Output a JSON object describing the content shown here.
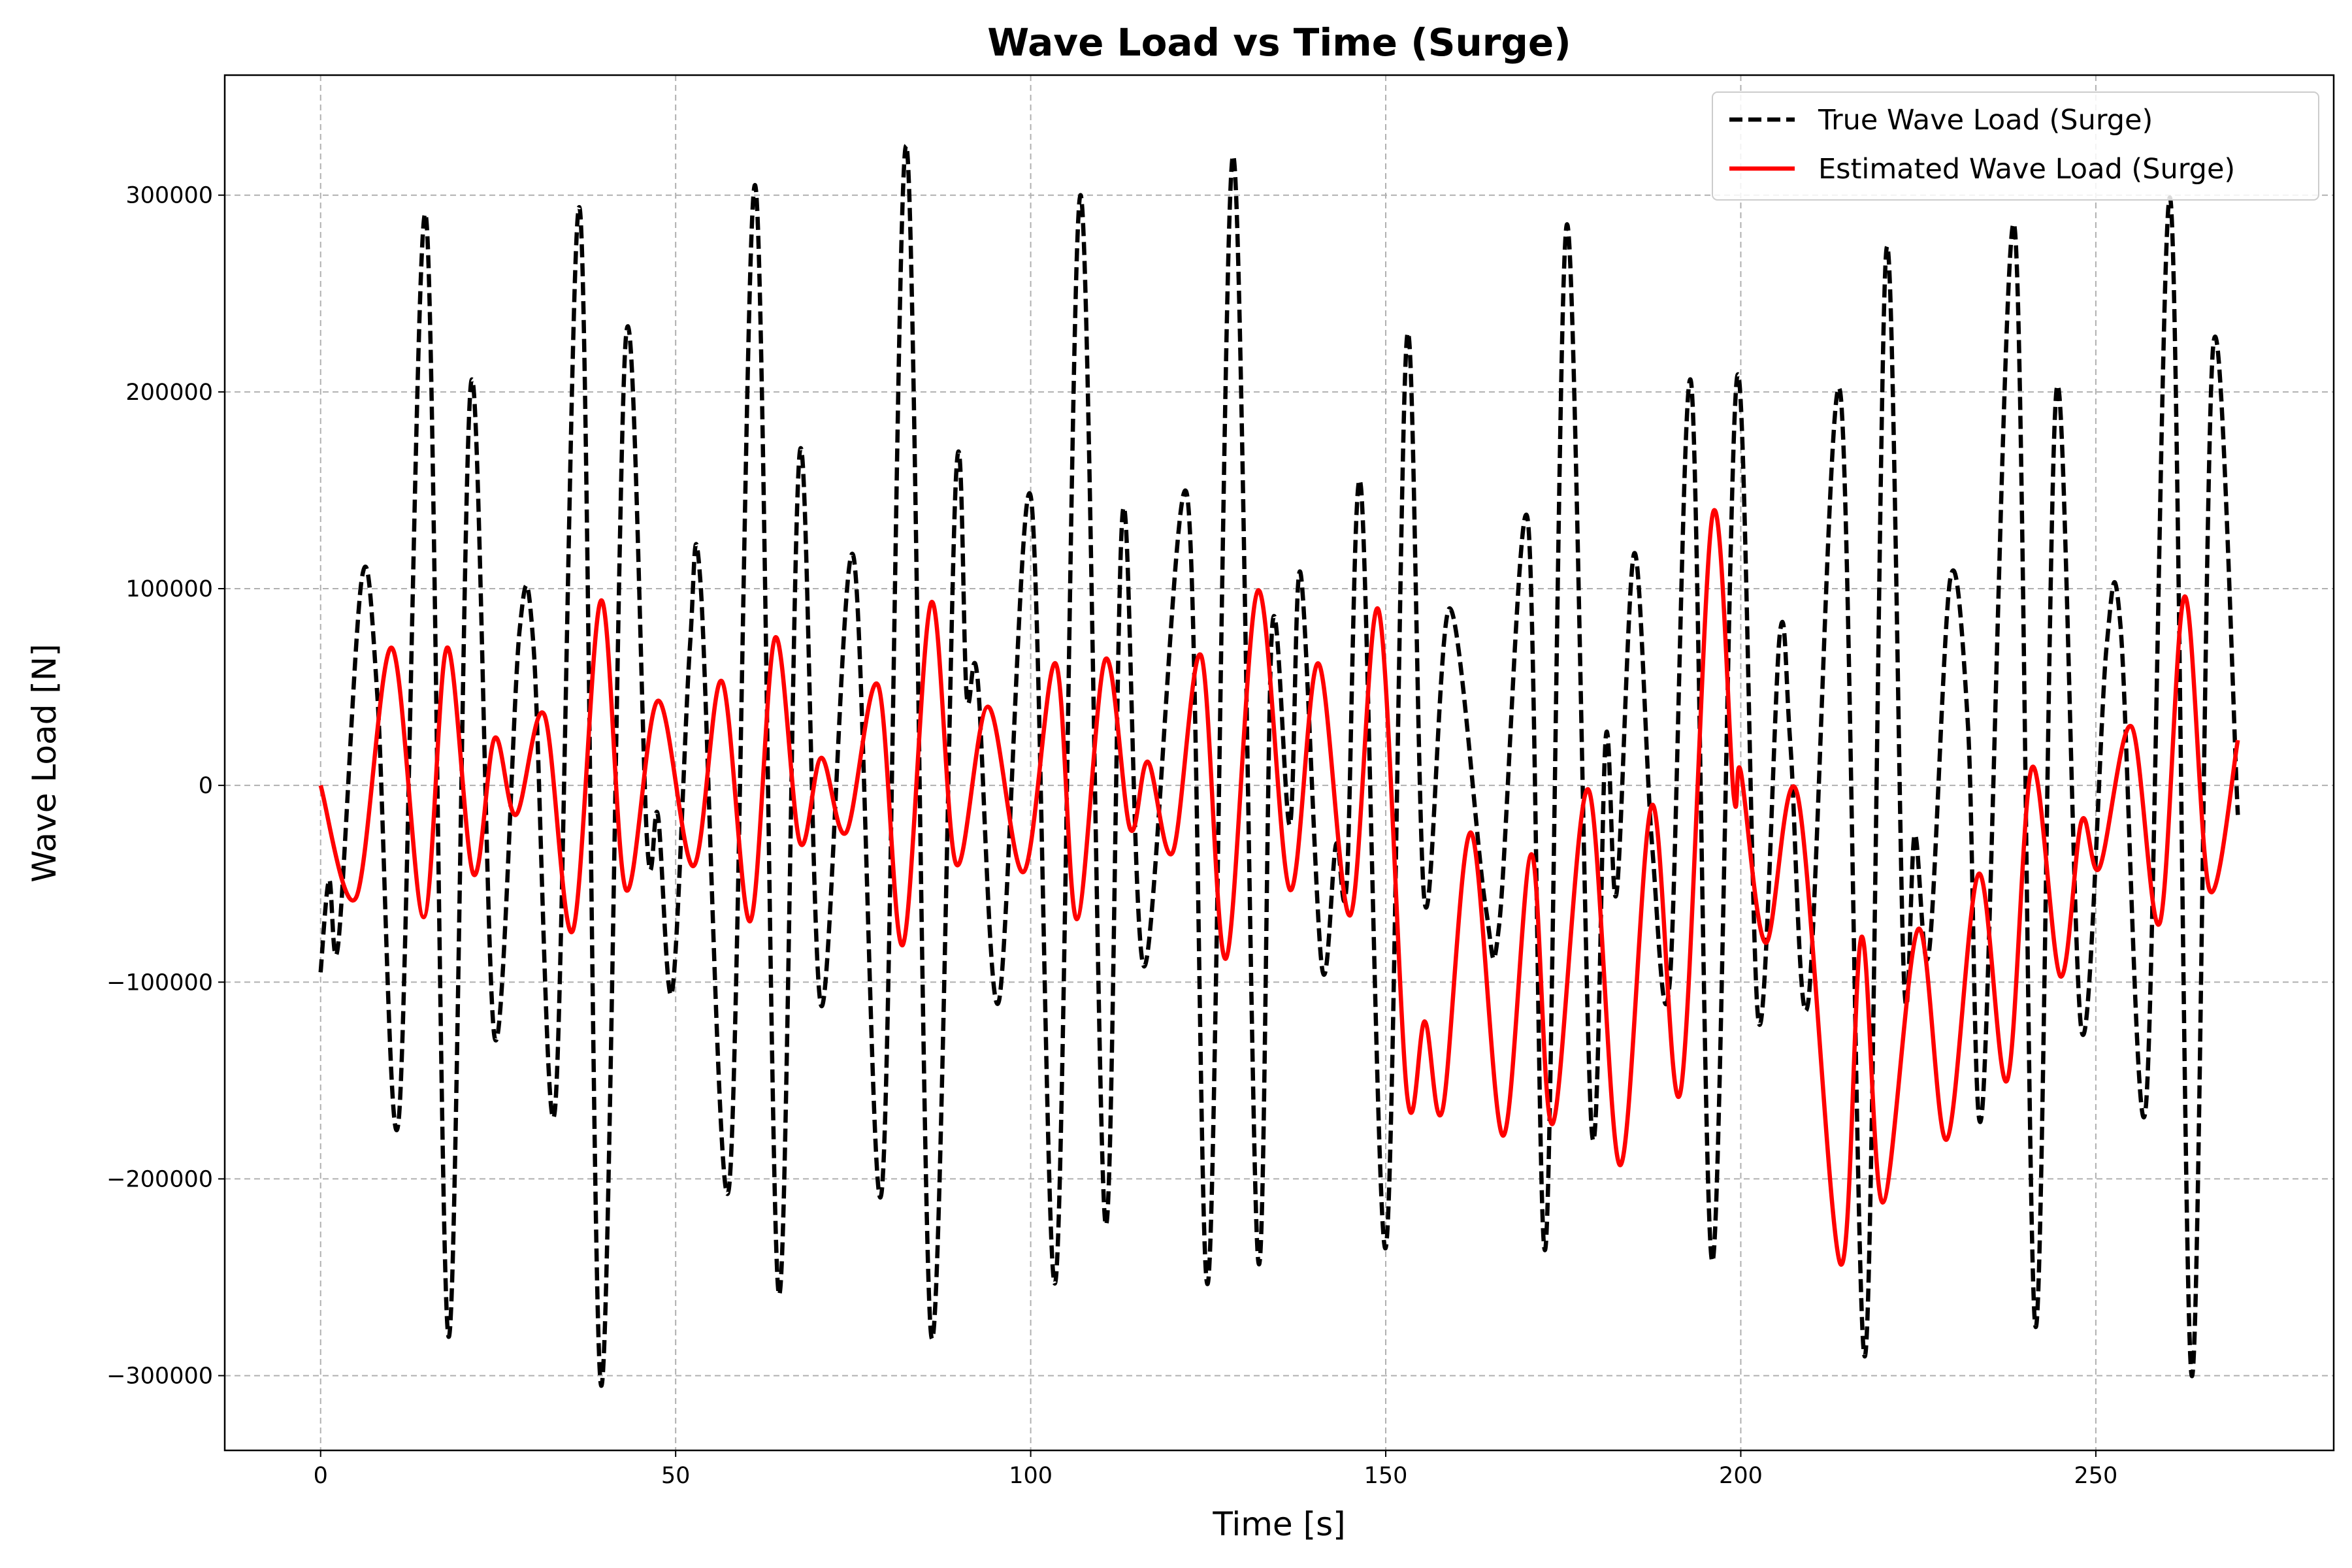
{
  "chart_data": {
    "type": "line",
    "title": "Wave Load vs Time (Surge)",
    "x_label": "Time [s]",
    "y_label": "Wave Load [N]",
    "xlim": [
      -13.5,
      283.5
    ],
    "ylim": [
      -338000,
      361000
    ],
    "xticks": [
      0,
      50,
      100,
      150,
      200,
      250
    ],
    "yticks": [
      {
        "value": -300000,
        "label": "−300000"
      },
      {
        "value": -200000,
        "label": "−200000"
      },
      {
        "value": -100000,
        "label": "−100000"
      },
      0,
      100000,
      200000,
      300000
    ],
    "grid": true,
    "legend": "upper right",
    "series": [
      {
        "name": "True Wave Load (Surge)",
        "color": "#000000",
        "style": "dashed",
        "x": [
          0,
          1.2,
          2.5,
          5.8,
          8,
          11,
          14.8,
          18,
          21.2,
          24.5,
          28,
          30,
          33,
          36.5,
          39.5,
          43,
          46,
          47.5,
          49.5,
          52,
          53.5,
          57.5,
          61.2,
          64.5,
          67.5,
          70.5,
          75,
          79,
          82.5,
          86,
          89.5,
          91,
          92.5,
          95.5,
          100,
          103.5,
          107,
          110.5,
          113,
          116,
          122,
          125,
          128.5,
          132,
          134,
          136.5,
          138,
          141,
          143,
          144.5,
          146.5,
          150,
          153,
          155.5,
          159,
          164,
          166,
          170,
          172.5,
          175.5,
          179,
          181,
          182.5,
          185,
          187.5,
          190,
          193,
          196,
          199.5,
          202.5,
          205.5,
          207,
          209.5,
          214,
          217.5,
          220.5,
          223,
          224.5,
          226.5,
          229.5,
          232,
          234,
          238.5,
          241.5,
          244.5,
          248,
          251.5,
          253.5,
          257,
          260.5,
          263.5,
          266.5,
          270
        ],
        "values": [
          -95000,
          -48000,
          -80000,
          105000,
          45000,
          -170000,
          290000,
          -280000,
          205000,
          -128000,
          78000,
          70000,
          -165000,
          293000,
          -305000,
          228000,
          -30000,
          -15000,
          -105000,
          70000,
          103000,
          -205000,
          305000,
          -258000,
          170000,
          -112000,
          117000,
          -207000,
          325000,
          -280000,
          158000,
          45000,
          55000,
          -110000,
          147000,
          -252000,
          300000,
          -222000,
          140000,
          -92000,
          148000,
          -252000,
          320000,
          -240000,
          80000,
          -20000,
          108000,
          -92000,
          -30000,
          -50000,
          152000,
          -235000,
          228000,
          -60000,
          90000,
          -60000,
          -70000,
          135000,
          -235000,
          285000,
          -175000,
          25000,
          -55000,
          118000,
          -30000,
          -100000,
          205000,
          -242000,
          208000,
          -120000,
          77000,
          20000,
          -110000,
          200000,
          -290000,
          272000,
          -100000,
          -25000,
          -85000,
          105000,
          30000,
          -165000,
          285000,
          -275000,
          202000,
          -125000,
          70000,
          80000,
          -165000,
          298000,
          -300000,
          222000,
          -15000
        ]
      },
      {
        "name": "Estimated Wave Load (Surge)",
        "color": "#ff0000",
        "style": "solid",
        "x": [
          0,
          5,
          10,
          14.5,
          17.8,
          21.5,
          24.5,
          27.5,
          31.5,
          35.5,
          39.5,
          43,
          47.5,
          52.5,
          56.5,
          60.5,
          64,
          67.5,
          70.5,
          74,
          78.5,
          82,
          86,
          89.5,
          94,
          99,
          103.5,
          106.5,
          110.5,
          114,
          116.5,
          120,
          124,
          127.5,
          132,
          136.5,
          140.5,
          145,
          149,
          153,
          155.5,
          158,
          162,
          166.5,
          170.5,
          173.5,
          178.5,
          183,
          187.5,
          191.5,
          196,
          199,
          200,
          203.5,
          208,
          214,
          217,
          220,
          225,
          229,
          233.5,
          237.5,
          241,
          245,
          248,
          250.5,
          255,
          259,
          262.5,
          266,
          270
        ],
        "values": [
          0,
          -57000,
          70000,
          -67000,
          70000,
          -45000,
          24000,
          -15000,
          36000,
          -74000,
          94000,
          -53000,
          43000,
          -41000,
          53000,
          -69000,
          75000,
          -29000,
          14000,
          -24000,
          51000,
          -81000,
          93000,
          -40000,
          40000,
          -44000,
          62000,
          -68000,
          64000,
          -22000,
          12000,
          -34000,
          66000,
          -88000,
          99000,
          -53000,
          62000,
          -66000,
          89000,
          -157000,
          -120000,
          -165000,
          -24000,
          -178000,
          -35000,
          -172000,
          -2000,
          -193000,
          -10000,
          -156000,
          137000,
          -5000,
          7000,
          -80000,
          -5000,
          -243000,
          -77000,
          -212000,
          -73000,
          -180000,
          -45000,
          -150000,
          9000,
          -97000,
          -18000,
          -42000,
          30000,
          -70000,
          96000,
          -53000,
          23000
        ]
      }
    ]
  }
}
